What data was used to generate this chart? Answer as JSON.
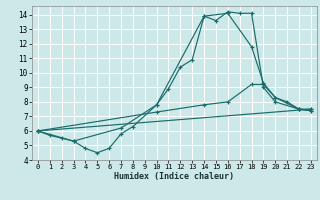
{
  "xlabel": "Humidex (Indice chaleur)",
  "xlim": [
    -0.5,
    23.5
  ],
  "ylim": [
    4,
    14.6
  ],
  "yticks": [
    4,
    5,
    6,
    7,
    8,
    9,
    10,
    11,
    12,
    13,
    14
  ],
  "xticks": [
    0,
    1,
    2,
    3,
    4,
    5,
    6,
    7,
    8,
    9,
    10,
    11,
    12,
    13,
    14,
    15,
    16,
    17,
    18,
    19,
    20,
    21,
    22,
    23
  ],
  "bg_color": "#cce8e8",
  "grid_color": "#b0d8d8",
  "line_color": "#1a6b6b",
  "lines": [
    {
      "x": [
        0,
        1,
        2,
        3,
        4,
        5,
        6,
        7,
        8,
        10,
        11,
        12,
        13,
        14,
        15,
        16,
        17,
        18,
        19,
        20,
        22,
        23
      ],
      "y": [
        6.0,
        5.7,
        5.5,
        5.3,
        4.8,
        4.5,
        4.8,
        5.8,
        6.3,
        7.8,
        8.9,
        10.4,
        10.9,
        13.9,
        13.6,
        14.2,
        14.1,
        14.1,
        9.0,
        8.0,
        7.5,
        7.4
      ]
    },
    {
      "x": [
        0,
        3,
        7,
        10,
        14,
        16,
        18,
        19,
        20,
        21,
        22,
        23
      ],
      "y": [
        6.0,
        5.3,
        6.2,
        7.8,
        13.9,
        14.1,
        11.8,
        9.3,
        8.3,
        8.0,
        7.5,
        7.4
      ]
    },
    {
      "x": [
        0,
        23
      ],
      "y": [
        6.0,
        7.5
      ]
    },
    {
      "x": [
        0,
        10,
        14,
        16,
        18,
        19,
        20,
        22,
        23
      ],
      "y": [
        6.0,
        7.3,
        7.8,
        8.0,
        9.2,
        9.2,
        8.3,
        7.5,
        7.5
      ]
    }
  ]
}
